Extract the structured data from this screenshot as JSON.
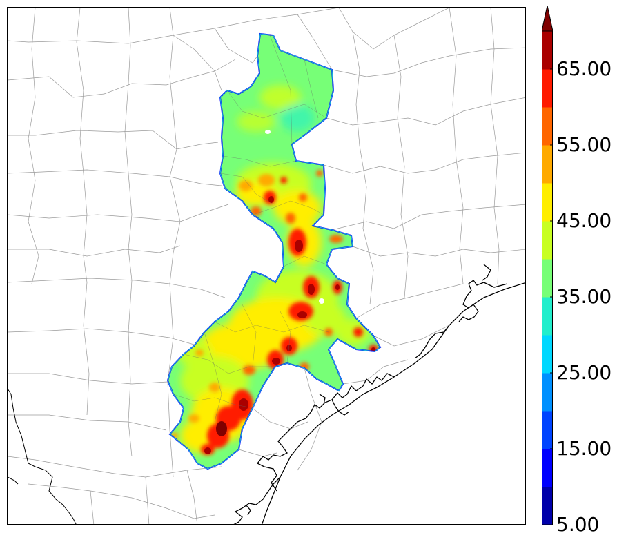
{
  "map": {
    "colorbar": {
      "levels": [
        5,
        10,
        15,
        20,
        25,
        30,
        35,
        40,
        45,
        50,
        55,
        60,
        65,
        70
      ],
      "colors": [
        "#0000aa",
        "#0000ff",
        "#0044ff",
        "#0090ff",
        "#00d8ff",
        "#22eecc",
        "#77ff77",
        "#c8ff22",
        "#ffee00",
        "#ffaa00",
        "#ff6600",
        "#ff1a00",
        "#aa0000"
      ],
      "extend_color": "#800000",
      "tick_labels": [
        "5.00",
        "15.00",
        "25.00",
        "35.00",
        "45.00",
        "55.00",
        "65.00"
      ]
    },
    "colors": {
      "county_lines": "#9a9a9a",
      "coastline": "#000000"
    }
  }
}
